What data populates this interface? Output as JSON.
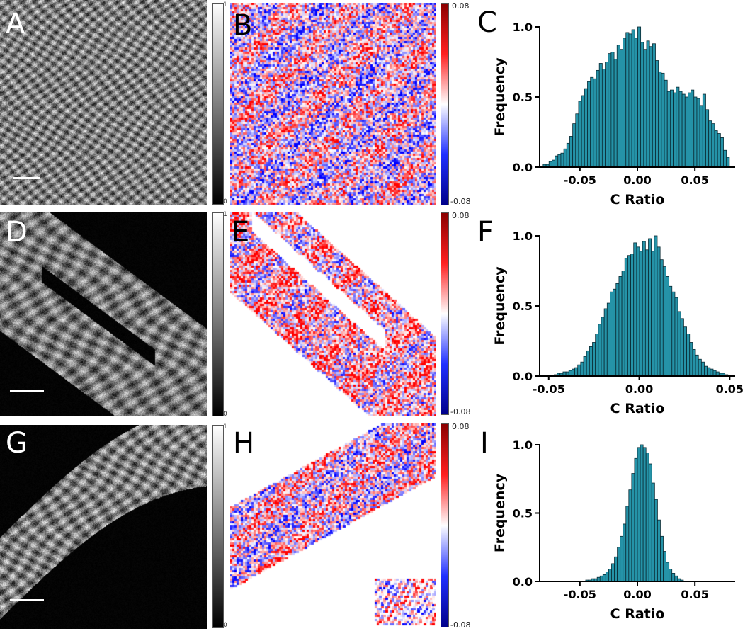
{
  "panels": {
    "A": "A",
    "B": "B",
    "C": "C",
    "D": "D",
    "E": "E",
    "F": "F",
    "G": "G",
    "H": "H",
    "I": "I"
  },
  "grayscale_colorbar": {
    "max_label": "1",
    "min_label": "0"
  },
  "ratio_colorbar": {
    "max_label": "0.08",
    "min_label": "-0.08"
  },
  "chart_data": [
    {
      "panel": "C",
      "type": "bar",
      "xlabel": "C Ratio",
      "ylabel": "Frequency",
      "xlim": [
        -0.085,
        0.085
      ],
      "ylim": [
        0,
        1.0
      ],
      "xticks": [
        "-0.05",
        "0.00",
        "0.05"
      ],
      "xtick_values": [
        -0.05,
        0.0,
        0.05
      ],
      "yticks": [
        "0.0",
        "0.5",
        "1.0"
      ],
      "ytick_values": [
        0,
        0.5,
        1.0
      ],
      "bin_range": [
        -0.082,
        0.08
      ],
      "values": [
        0.02,
        0.02,
        0.04,
        0.05,
        0.08,
        0.09,
        0.1,
        0.13,
        0.17,
        0.22,
        0.31,
        0.38,
        0.47,
        0.51,
        0.56,
        0.61,
        0.64,
        0.63,
        0.69,
        0.74,
        0.7,
        0.75,
        0.81,
        0.82,
        0.77,
        0.87,
        0.84,
        0.92,
        0.96,
        0.95,
        0.98,
        0.92,
        1.0,
        0.89,
        0.84,
        0.9,
        0.86,
        0.88,
        0.76,
        0.68,
        0.67,
        0.62,
        0.54,
        0.55,
        0.53,
        0.57,
        0.54,
        0.52,
        0.5,
        0.53,
        0.55,
        0.5,
        0.49,
        0.44,
        0.52,
        0.41,
        0.33,
        0.31,
        0.26,
        0.24,
        0.21,
        0.12,
        0.07
      ]
    },
    {
      "panel": "F",
      "type": "bar",
      "xlabel": "C Ratio",
      "ylabel": "Frequency",
      "xlim": [
        -0.055,
        0.053
      ],
      "ylim": [
        0,
        1.0
      ],
      "xticks": [
        "-0.05",
        "0.00",
        "0.05"
      ],
      "xtick_values": [
        -0.05,
        0.0,
        0.05
      ],
      "yticks": [
        "0.0",
        "0.5",
        "1.0"
      ],
      "ytick_values": [
        0,
        0.5,
        1.0
      ],
      "bin_range": [
        -0.047,
        0.049
      ],
      "values": [
        0.01,
        0.02,
        0.02,
        0.03,
        0.03,
        0.04,
        0.05,
        0.06,
        0.08,
        0.1,
        0.14,
        0.18,
        0.21,
        0.24,
        0.3,
        0.37,
        0.42,
        0.48,
        0.52,
        0.6,
        0.62,
        0.66,
        0.71,
        0.75,
        0.84,
        0.86,
        0.87,
        0.95,
        0.92,
        0.89,
        0.96,
        0.9,
        0.98,
        0.89,
        1.0,
        0.92,
        0.83,
        0.78,
        0.71,
        0.64,
        0.6,
        0.56,
        0.46,
        0.41,
        0.35,
        0.3,
        0.24,
        0.19,
        0.15,
        0.12,
        0.1,
        0.07,
        0.06,
        0.05,
        0.04,
        0.03,
        0.02,
        0.02,
        0.01
      ]
    },
    {
      "panel": "I",
      "type": "bar",
      "xlabel": "C Ratio",
      "ylabel": "Frequency",
      "xlim": [
        -0.085,
        0.085
      ],
      "ylim": [
        0,
        1.0
      ],
      "xticks": [
        "-0.05",
        "0.00",
        "0.05"
      ],
      "xtick_values": [
        -0.05,
        0.0,
        0.05
      ],
      "yticks": [
        "0.0",
        "0.5",
        "1.0"
      ],
      "ytick_values": [
        0,
        0.5,
        1.0
      ],
      "bin_range": [
        -0.045,
        0.04
      ],
      "values": [
        0.01,
        0.01,
        0.02,
        0.02,
        0.03,
        0.04,
        0.05,
        0.07,
        0.09,
        0.13,
        0.18,
        0.25,
        0.33,
        0.42,
        0.55,
        0.67,
        0.79,
        0.9,
        0.98,
        1.0,
        0.98,
        0.94,
        0.86,
        0.72,
        0.6,
        0.45,
        0.33,
        0.22,
        0.14,
        0.09,
        0.06,
        0.04,
        0.02,
        0.01
      ]
    }
  ]
}
